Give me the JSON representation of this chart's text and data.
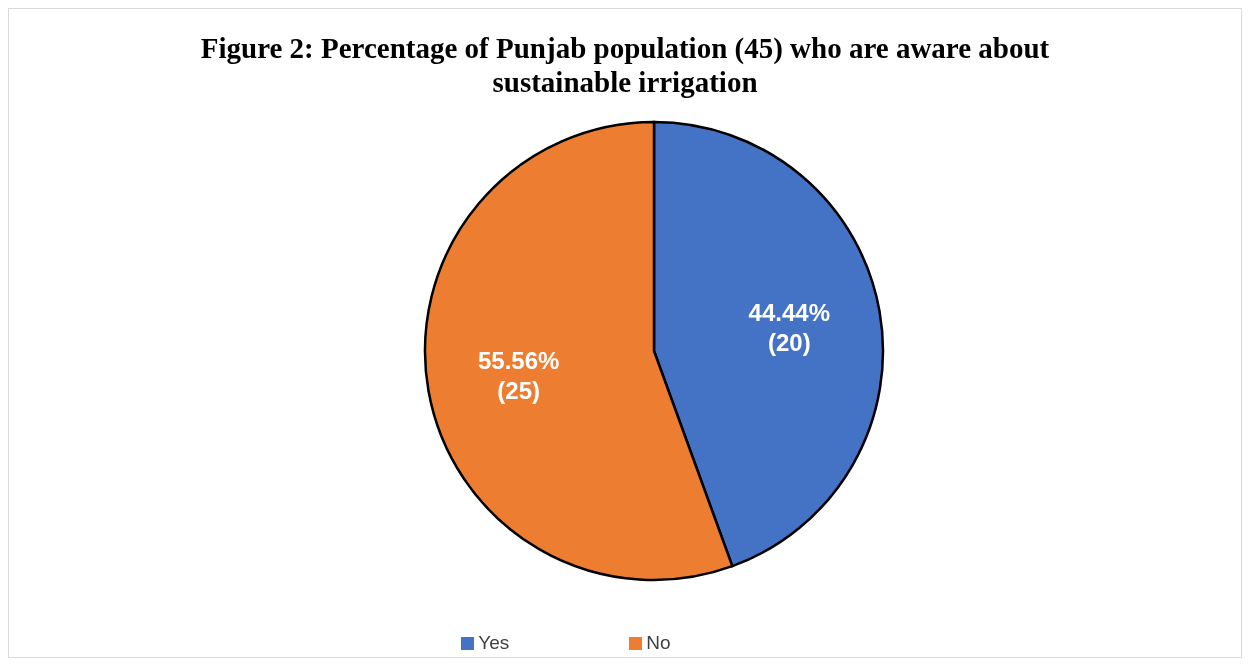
{
  "chart_data": {
    "type": "pie",
    "title": "Figure 2: Percentage of Punjab population (45) who are aware about sustainable irrigation",
    "categories": [
      "Yes",
      "No"
    ],
    "values": [
      20,
      25
    ],
    "colors": [
      "#4472c4",
      "#ed7d31"
    ],
    "value_labels": [
      "44.44% (20)",
      "55.56% (25)"
    ],
    "legend": "bottom"
  }
}
